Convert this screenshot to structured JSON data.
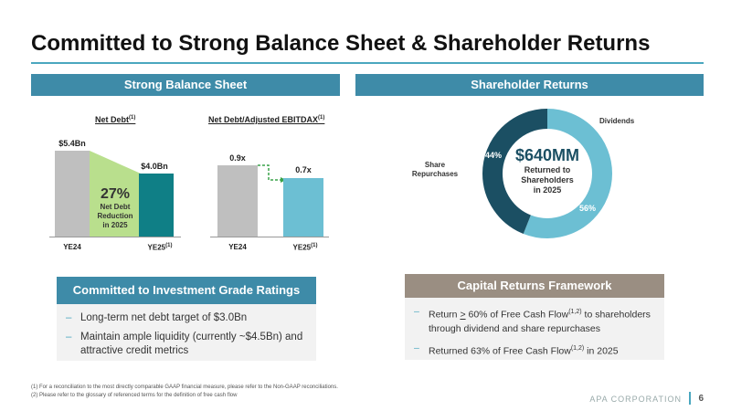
{
  "title": "Committed to Strong Balance Sheet & Shareholder Returns",
  "left_band": "Strong Balance Sheet",
  "right_band": "Shareholder Returns",
  "net_debt_chart": {
    "title": "Net Debt",
    "title_sup": "(1)",
    "bars": [
      {
        "label": "YE24",
        "value_text": "$5.4Bn",
        "value": 5.4,
        "color": "#bfbfbf"
      },
      {
        "label": "YE25",
        "label_sup": "(1)",
        "value_text": "$4.0Bn",
        "value": 4.0,
        "color": "#0f7f86"
      }
    ],
    "reduction_pct": "27%",
    "reduction_text_1": "Net Debt",
    "reduction_text_2": "Reduction",
    "reduction_text_3": "in 2025"
  },
  "ebitdax_chart": {
    "title": "Net Debt/Adjusted EBITDAX",
    "title_sup": "(1)",
    "bars": [
      {
        "label": "YE24",
        "value_text": "0.9x",
        "value": 0.9,
        "color": "#bfbfbf"
      },
      {
        "label": "YE25",
        "label_sup": "(1)",
        "value_text": "0.7x",
        "value": 0.7,
        "color": "#6cbfd3"
      }
    ]
  },
  "donut": {
    "amount": "$640MM",
    "line1": "Returned to",
    "line2": "Shareholders",
    "line3": "in 2025",
    "dividends_label": "Dividends",
    "repurchases_label_1": "Share",
    "repurchases_label_2": "Repurchases",
    "repurchases_pct": "44%",
    "dividends_pct": "56%",
    "repurchases_value": 44,
    "dividends_value": 56,
    "repurchases_color": "#1b4f63",
    "dividends_color": "#6cbfd3"
  },
  "ig_box": {
    "header": "Committed to Investment Grade Ratings",
    "header_color": "#3e8ba8",
    "bullets": [
      "Long-term net debt target of $3.0Bn",
      "Maintain ample liquidity (currently ~$4.5Bn) and attractive credit metrics"
    ]
  },
  "crf_box": {
    "header": "Capital Returns Framework",
    "header_color": "#9a8e82",
    "bullet1_a": "Return ",
    "bullet1_b": ">",
    "bullet1_c": " 60% of Free Cash Flow",
    "bullet1_sup": "(1,2)",
    "bullet1_d": " to shareholders through dividend and share repurchases",
    "bullet2_a": "Returned 63% of Free Cash Flow",
    "bullet2_sup": "(1,2)",
    "bullet2_b": " in 2025"
  },
  "footnotes": [
    "(1)   For a reconciliation to the most directly comparable GAAP financial measure, please refer to the Non-GAAP reconciliations.",
    "(2)   Please refer to the glossary of referenced terms for the definition of free cash flow"
  ],
  "footer_brand": "APA CORPORATION",
  "page_number": "6"
}
